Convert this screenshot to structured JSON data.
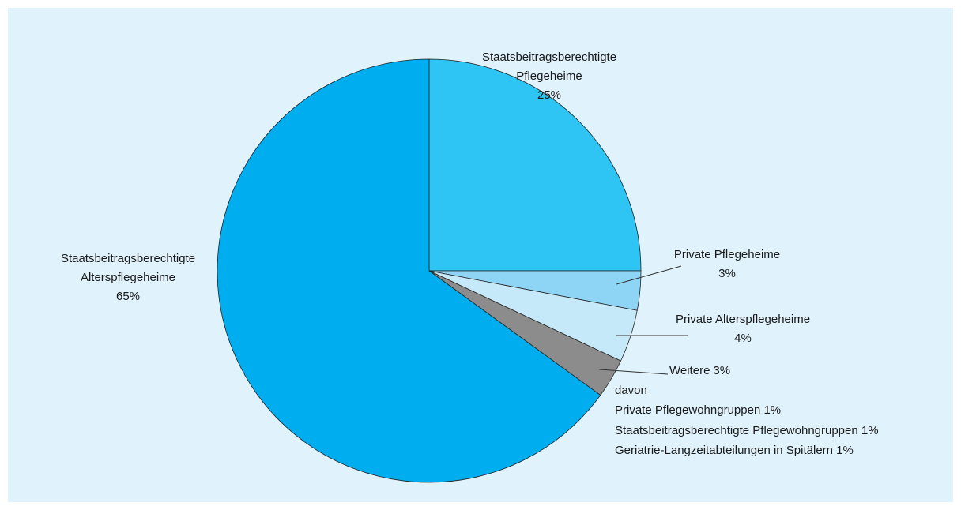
{
  "chart_data": {
    "type": "pie",
    "categories": [
      "Staatsbeitragsberechtigte Pflegeheime",
      "Private Pflegeheime",
      "Private Alterspflegeheime",
      "Weitere",
      "Staatsbeitragsberechtigte Alterspflegeheime"
    ],
    "values": [
      25,
      3,
      4,
      3,
      65
    ],
    "value_labels": [
      "25%",
      "3%",
      "4%",
      "3%",
      "65%"
    ],
    "colors": [
      "#2ec4f3",
      "#8ed4f5",
      "#c6e9f9",
      "#8c8c8c",
      "#00aeef"
    ],
    "note": {
      "title": "davon",
      "items": [
        "Private Pflegewohngruppen 1%",
        "Staatsbeitragsberechtigte Pflegewohngruppen 1%",
        "Geriatrie-Langzeitabteilungen in Spitälern 1%"
      ]
    }
  }
}
